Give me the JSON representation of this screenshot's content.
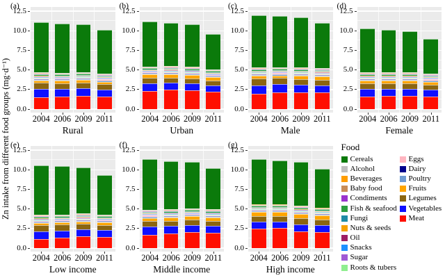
{
  "figure": {
    "ylabel": "Zn intake from different food groups (mg·d⁻¹)"
  },
  "chart_data": {
    "type": "bar",
    "stacked": true,
    "x": [
      "2004",
      "2006",
      "2009",
      "2011"
    ],
    "ylabel": "Zn intake from different food groups (mg·d⁻¹)",
    "ylim": [
      0,
      12.5
    ],
    "yticks": [
      "0.0",
      "2.5",
      "5.0",
      "7.5",
      "10.0",
      "12.5"
    ],
    "grid": true,
    "legend_title": "Food",
    "legend_position": "bottom-right",
    "plot_bg": "#ebebeb",
    "foods": [
      {
        "name": "Cereals",
        "color": "#0b7a0b"
      },
      {
        "name": "Alcohol",
        "color": "#bfbfbf"
      },
      {
        "name": "Beverages",
        "color": "#ff9d00"
      },
      {
        "name": "Baby food",
        "color": "#c98d57"
      },
      {
        "name": "Condiments",
        "color": "#9a32cd"
      },
      {
        "name": "Fish & seafood",
        "color": "#2e9e40"
      },
      {
        "name": "Fungi",
        "color": "#1f8ba5"
      },
      {
        "name": "Nuts & seeds",
        "color": "#f5a100"
      },
      {
        "name": "Oil",
        "color": "#9e1f63"
      },
      {
        "name": "Snacks",
        "color": "#1e90ff"
      },
      {
        "name": "Sugar",
        "color": "#a05ad5"
      },
      {
        "name": "Roots & tubers",
        "color": "#90ee90"
      },
      {
        "name": "Eggs",
        "color": "#ffb6c1"
      },
      {
        "name": "Dairy",
        "color": "#00008b"
      },
      {
        "name": "Poultry",
        "color": "#6f9bd2"
      },
      {
        "name": "Fruits",
        "color": "#ffa500"
      },
      {
        "name": "Legumes",
        "color": "#8b6510"
      },
      {
        "name": "Vegetables",
        "color": "#0f0fff"
      },
      {
        "name": "Meat",
        "color": "#ff0f00"
      }
    ],
    "stack_order_bottom_to_top": [
      "Meat",
      "Vegetables",
      "Legumes",
      "Fruits",
      "Poultry",
      "Dairy",
      "Eggs",
      "Roots & tubers",
      "Sugar",
      "Snacks",
      "Oil",
      "Nuts & seeds",
      "Fungi",
      "Fish & seafood",
      "Condiments",
      "Baby food",
      "Beverages",
      "Alcohol",
      "Cereals"
    ],
    "small_segments_mg_per_day": {
      "Poultry": 0.1,
      "Dairy": 0.08,
      "Eggs": 0.1,
      "Roots & tubers": 0.06,
      "Sugar": 0.04,
      "Snacks": 0.08,
      "Oil": 0.04,
      "Nuts & seeds": 0.08,
      "Fungi": 0.08,
      "Fish & seafood": 0.15,
      "Condiments": 0.05,
      "Baby food": 0.05,
      "Beverages": 0.05,
      "Alcohol": 0.08
    },
    "panels": [
      {
        "letter": "(a)",
        "label": "Rural",
        "series": {
          "Meat": [
            1.5,
            1.6,
            1.7,
            1.6
          ],
          "Vegetables": [
            1.05,
            0.95,
            0.95,
            0.9
          ],
          "Legumes": [
            0.8,
            0.75,
            0.7,
            0.65
          ],
          "Fruits": [
            0.3,
            0.3,
            0.35,
            0.35
          ],
          "Cereals": [
            6.41,
            6.26,
            6.06,
            5.56
          ]
        }
      },
      {
        "letter": "(b)",
        "label": "Urban",
        "series": {
          "Meat": [
            2.35,
            2.5,
            2.4,
            2.25
          ],
          "Vegetables": [
            0.9,
            0.85,
            0.85,
            0.8
          ],
          "Legumes": [
            0.7,
            0.65,
            0.65,
            0.6
          ],
          "Fruits": [
            0.45,
            0.45,
            0.45,
            0.4
          ],
          "Cereals": [
            5.76,
            5.51,
            5.41,
            4.51
          ]
        }
      },
      {
        "letter": "(c)",
        "label": "Male",
        "series": {
          "Meat": [
            1.95,
            2.15,
            2.1,
            2.1
          ],
          "Vegetables": [
            1.1,
            1.0,
            1.0,
            0.95
          ],
          "Legumes": [
            0.85,
            0.8,
            0.75,
            0.7
          ],
          "Fruits": [
            0.35,
            0.35,
            0.4,
            0.45
          ],
          "Cereals": [
            6.71,
            6.56,
            6.46,
            5.81
          ]
        }
      },
      {
        "letter": "(d)",
        "label": "Female",
        "series": {
          "Meat": [
            1.6,
            1.65,
            1.7,
            1.6
          ],
          "Vegetables": [
            0.95,
            0.9,
            0.85,
            0.85
          ],
          "Legumes": [
            0.75,
            0.7,
            0.7,
            0.65
          ],
          "Fruits": [
            0.35,
            0.4,
            0.4,
            0.4
          ],
          "Cereals": [
            5.61,
            5.41,
            5.21,
            4.46
          ]
        }
      },
      {
        "letter": "(e)",
        "label": "Low income",
        "series": {
          "Meat": [
            1.15,
            1.3,
            1.5,
            1.45
          ],
          "Vegetables": [
            1.0,
            0.95,
            0.9,
            0.85
          ],
          "Legumes": [
            0.8,
            0.75,
            0.7,
            0.65
          ],
          "Fruits": [
            0.25,
            0.25,
            0.3,
            0.3
          ],
          "Cereals": [
            6.36,
            6.21,
            5.86,
            5.06
          ]
        }
      },
      {
        "letter": "(f)",
        "label": "Middle income",
        "series": {
          "Meat": [
            1.7,
            1.85,
            2.0,
            1.95
          ],
          "Vegetables": [
            1.05,
            0.95,
            0.9,
            0.85
          ],
          "Legumes": [
            0.75,
            0.7,
            0.7,
            0.65
          ],
          "Fruits": [
            0.35,
            0.4,
            0.45,
            0.45
          ],
          "Cereals": [
            6.51,
            6.16,
            5.91,
            5.31
          ]
        }
      },
      {
        "letter": "(g)",
        "label": "High income",
        "series": {
          "Meat": [
            2.45,
            2.55,
            2.15,
            2.05
          ],
          "Vegetables": [
            0.9,
            0.85,
            0.85,
            0.85
          ],
          "Legumes": [
            0.75,
            0.7,
            0.8,
            0.7
          ],
          "Fruits": [
            0.5,
            0.5,
            0.55,
            0.55
          ],
          "Cereals": [
            5.76,
            5.56,
            5.61,
            4.91
          ]
        }
      }
    ]
  }
}
